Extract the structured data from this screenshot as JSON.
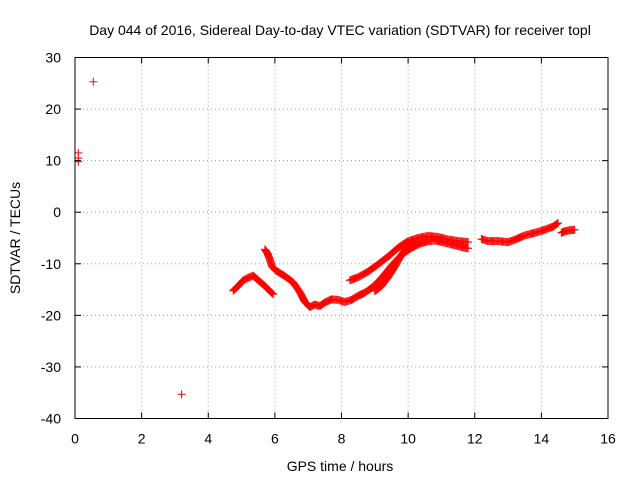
{
  "chart_data": {
    "type": "scatter",
    "title": "Day 044 of 2016, Sidereal Day-to-day VTEC variation (SDTVAR) for receiver topl",
    "xlabel": "GPS time / hours",
    "ylabel": "SDTVAR / TECUs",
    "xlim": [
      0,
      16
    ],
    "ylim": [
      -40,
      30
    ],
    "xticks": [
      0,
      2,
      4,
      6,
      8,
      10,
      12,
      14,
      16
    ],
    "yticks": [
      -40,
      -30,
      -20,
      -10,
      0,
      10,
      20,
      30
    ],
    "xtick_labels": [
      "0",
      "2",
      "4",
      "6",
      "8",
      "10",
      "12",
      "14",
      "16"
    ],
    "ytick_labels": [
      "-40",
      "-30",
      "-20",
      "-10",
      "0",
      "10",
      "20",
      "30"
    ],
    "grid": true,
    "marker": "+",
    "color": "#ff0000",
    "series": [
      {
        "name": "SDTVAR",
        "outliers": [
          [
            0.1,
            11.5
          ],
          [
            0.1,
            10.5
          ],
          [
            0.1,
            9.8
          ],
          [
            0.55,
            25.3
          ],
          [
            3.2,
            -35.3
          ]
        ],
        "segments": [
          [
            [
              4.75,
              -15.2
            ],
            [
              4.9,
              -14.3
            ],
            [
              5.05,
              -13.2
            ],
            [
              5.2,
              -12.7
            ],
            [
              5.35,
              -12.3
            ],
            [
              5.5,
              -13.2
            ],
            [
              5.7,
              -14.3
            ],
            [
              5.85,
              -15.3
            ],
            [
              5.95,
              -15.9
            ]
          ],
          [
            [
              5.7,
              -7.2
            ],
            [
              5.78,
              -8.0
            ],
            [
              5.85,
              -9.2
            ],
            [
              5.92,
              -10.6
            ],
            [
              6.05,
              -11.4
            ],
            [
              6.3,
              -12.4
            ],
            [
              6.55,
              -13.6
            ],
            [
              6.75,
              -15.5
            ],
            [
              6.9,
              -17.4
            ],
            [
              7.05,
              -18.4
            ],
            [
              7.2,
              -17.9
            ],
            [
              7.35,
              -18.2
            ],
            [
              7.5,
              -17.5
            ],
            [
              7.7,
              -16.9
            ],
            [
              7.9,
              -17.0
            ],
            [
              8.1,
              -17.4
            ],
            [
              8.3,
              -17.0
            ],
            [
              8.5,
              -16.2
            ],
            [
              8.7,
              -15.6
            ],
            [
              8.9,
              -14.7
            ],
            [
              9.1,
              -13.5
            ],
            [
              9.3,
              -12.0
            ],
            [
              9.5,
              -10.4
            ],
            [
              9.7,
              -9.0
            ],
            [
              9.9,
              -7.8
            ],
            [
              10.1,
              -6.9
            ],
            [
              10.35,
              -6.1
            ],
            [
              10.6,
              -5.6
            ],
            [
              10.85,
              -5.5
            ],
            [
              11.1,
              -5.9
            ],
            [
              11.4,
              -6.4
            ],
            [
              11.7,
              -6.9
            ],
            [
              11.8,
              -7.0
            ]
          ],
          [
            [
              8.25,
              -13.2
            ],
            [
              8.5,
              -12.6
            ],
            [
              8.8,
              -11.5
            ],
            [
              9.1,
              -10.1
            ],
            [
              9.4,
              -8.6
            ],
            [
              9.7,
              -6.9
            ],
            [
              10.0,
              -5.6
            ],
            [
              10.3,
              -5.0
            ],
            [
              10.6,
              -4.6
            ],
            [
              10.9,
              -4.8
            ],
            [
              11.2,
              -5.3
            ],
            [
              11.5,
              -5.6
            ],
            [
              11.8,
              -5.8
            ]
          ],
          [
            [
              9.0,
              -15.3
            ],
            [
              9.2,
              -14.3
            ],
            [
              9.4,
              -12.6
            ],
            [
              9.6,
              -10.6
            ],
            [
              9.75,
              -8.8
            ],
            [
              9.9,
              -7.3
            ],
            [
              10.05,
              -6.3
            ],
            [
              10.2,
              -5.8
            ]
          ],
          [
            [
              12.2,
              -5.2
            ],
            [
              12.4,
              -5.6
            ],
            [
              12.7,
              -5.6
            ],
            [
              13.0,
              -5.8
            ],
            [
              13.25,
              -5.2
            ],
            [
              13.5,
              -4.5
            ],
            [
              13.8,
              -4.0
            ],
            [
              14.1,
              -3.4
            ],
            [
              14.35,
              -2.8
            ],
            [
              14.5,
              -2.1
            ]
          ],
          [
            [
              14.6,
              -4.0
            ],
            [
              14.7,
              -3.7
            ],
            [
              14.85,
              -3.5
            ],
            [
              15.0,
              -3.4
            ]
          ]
        ]
      }
    ]
  }
}
